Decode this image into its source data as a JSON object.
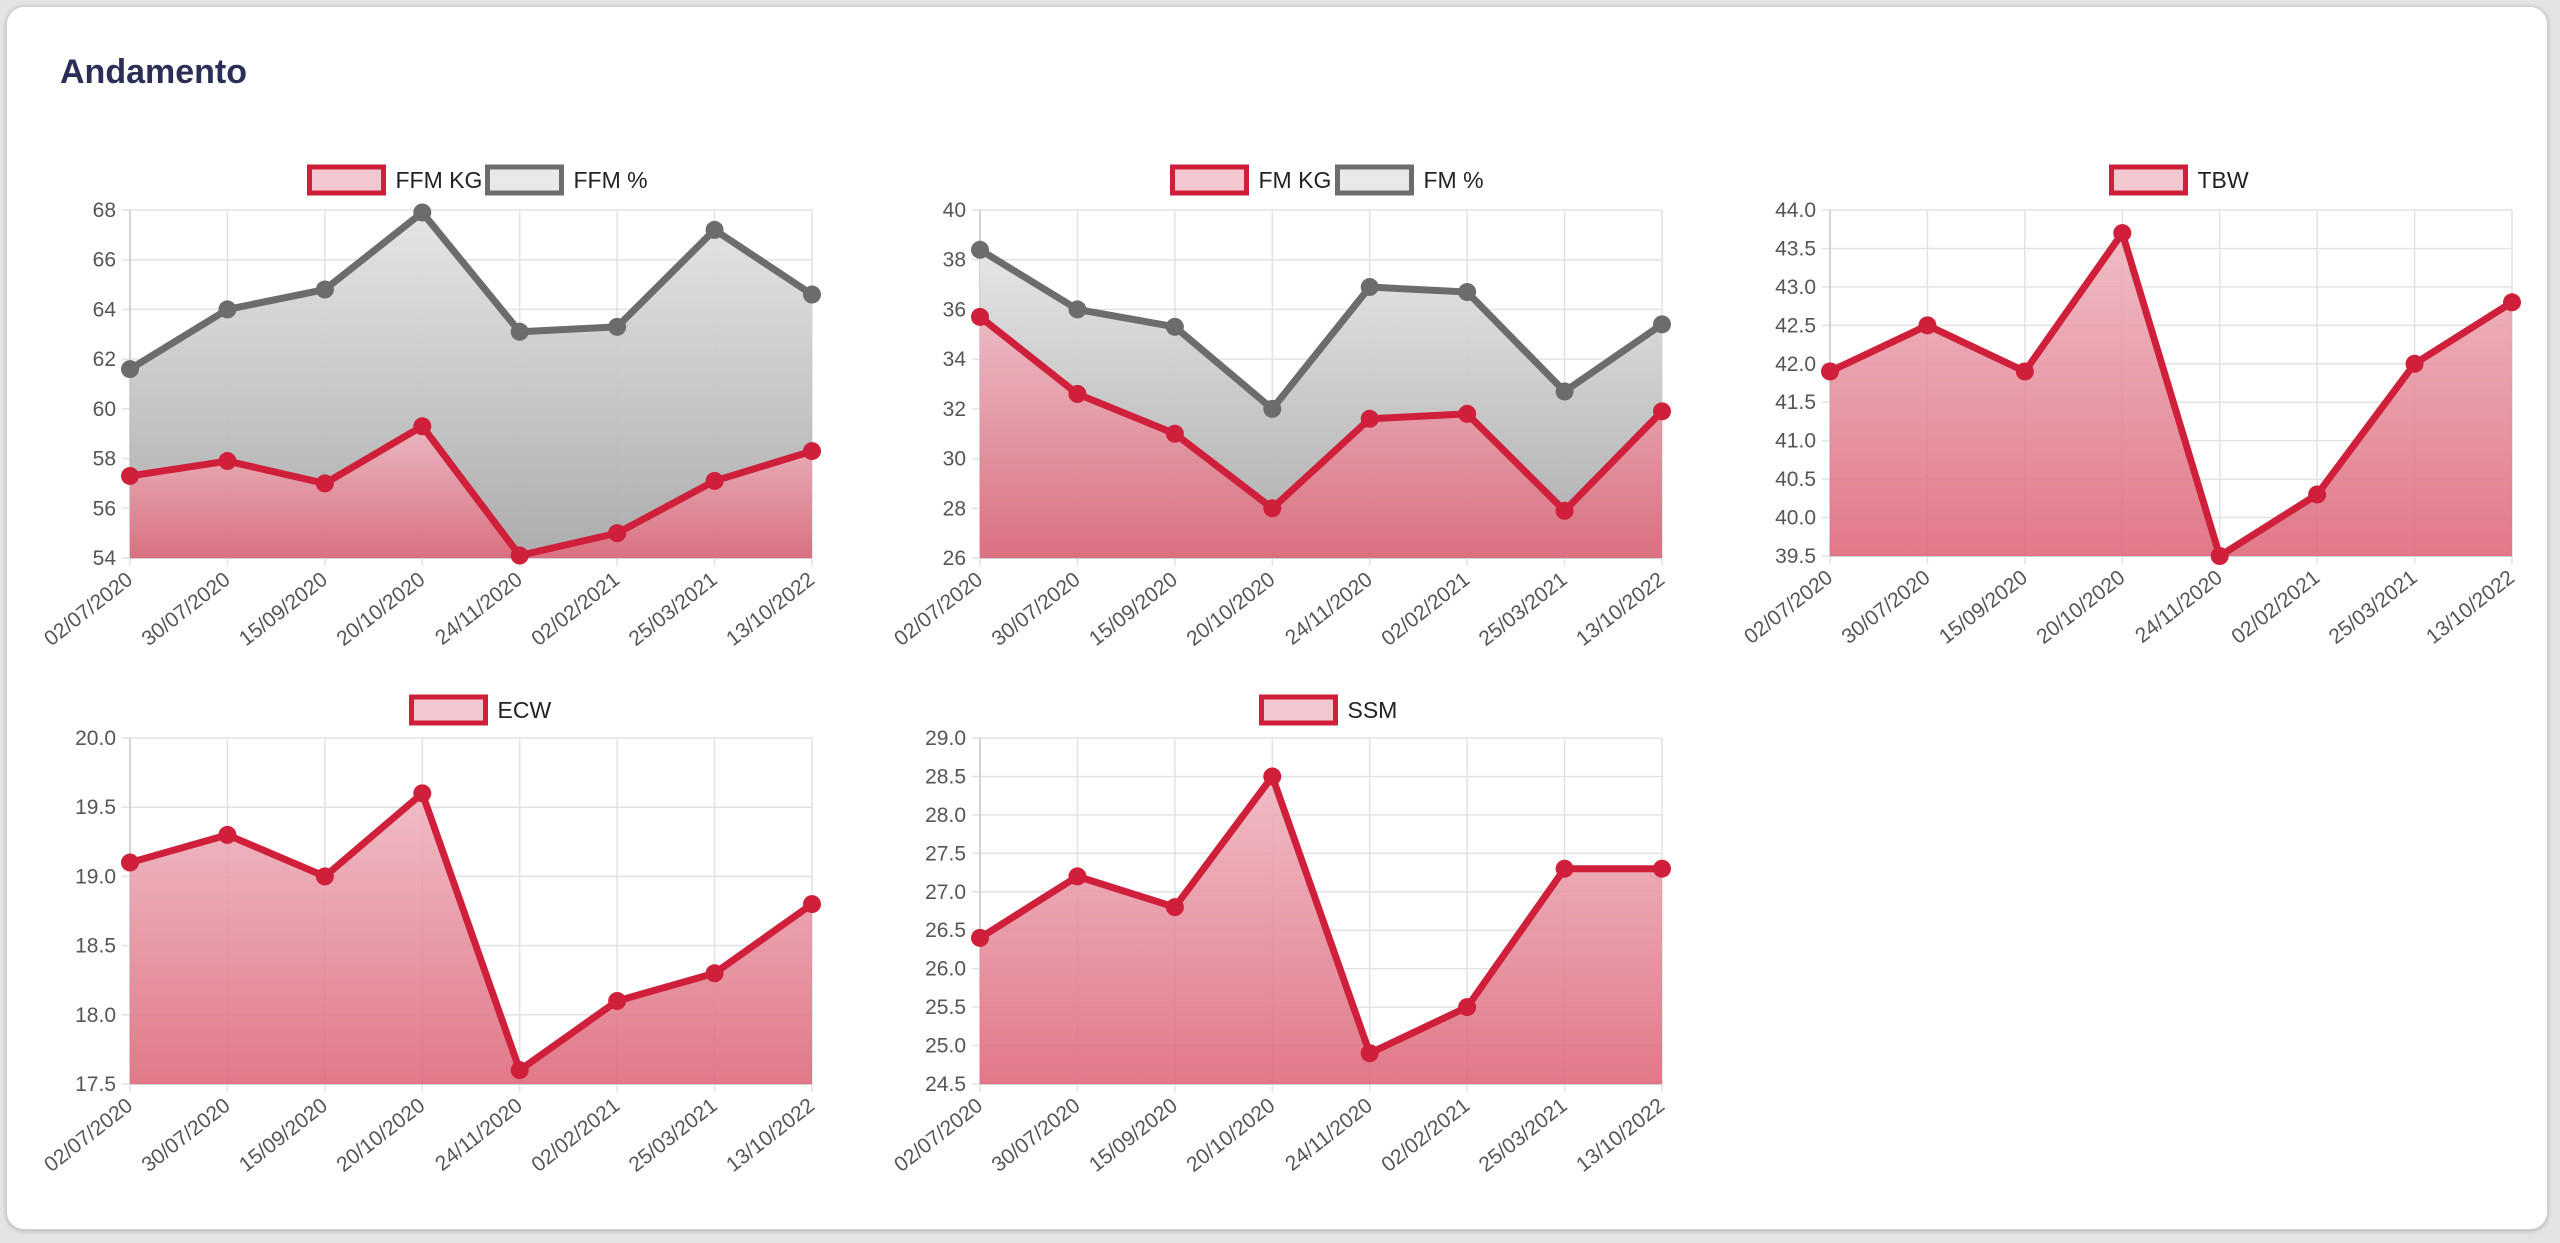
{
  "card": {
    "title": "Andamento"
  },
  "colors": {
    "red": "#cf1f3a",
    "gray": "#6c6c6c"
  },
  "chart_data": [
    {
      "id": "ffm",
      "type": "area",
      "categories": [
        "02/07/2020",
        "30/07/2020",
        "15/09/2020",
        "20/10/2020",
        "24/11/2020",
        "02/02/2021",
        "25/03/2021",
        "13/10/2022"
      ],
      "ylim": [
        54,
        68
      ],
      "yticks": [
        "68",
        "66",
        "64",
        "62",
        "60",
        "58",
        "56",
        "54"
      ],
      "series": [
        {
          "name": "FFM KG",
          "color": "red",
          "values": [
            57.3,
            57.9,
            57.0,
            59.3,
            54.1,
            55.0,
            57.1,
            58.3
          ]
        },
        {
          "name": "FFM %",
          "color": "gray",
          "values": [
            61.6,
            64.0,
            64.8,
            67.9,
            63.1,
            63.3,
            67.2,
            64.6
          ]
        }
      ],
      "grid": true,
      "legend": "top-center"
    },
    {
      "id": "fm",
      "type": "area",
      "categories": [
        "02/07/2020",
        "30/07/2020",
        "15/09/2020",
        "20/10/2020",
        "24/11/2020",
        "02/02/2021",
        "25/03/2021",
        "13/10/2022"
      ],
      "ylim": [
        26,
        40
      ],
      "yticks": [
        "40",
        "38",
        "36",
        "34",
        "32",
        "30",
        "28",
        "26"
      ],
      "series": [
        {
          "name": "FM KG",
          "color": "red",
          "values": [
            35.7,
            32.6,
            31.0,
            28.0,
            31.6,
            31.8,
            27.9,
            31.9
          ]
        },
        {
          "name": "FM %",
          "color": "gray",
          "values": [
            38.4,
            36.0,
            35.3,
            32.0,
            36.9,
            36.7,
            32.7,
            35.4
          ]
        }
      ],
      "grid": true,
      "legend": "top-center"
    },
    {
      "id": "tbw",
      "type": "area",
      "categories": [
        "02/07/2020",
        "30/07/2020",
        "15/09/2020",
        "20/10/2020",
        "24/11/2020",
        "02/02/2021",
        "25/03/2021",
        "13/10/2022"
      ],
      "ylim": [
        39.5,
        44.0
      ],
      "yticks": [
        "44.0",
        "43.5",
        "43.0",
        "42.5",
        "42.0",
        "41.5",
        "41.0",
        "40.5",
        "40.0",
        "39.5"
      ],
      "series": [
        {
          "name": "TBW",
          "color": "red",
          "values": [
            41.9,
            42.5,
            41.9,
            43.7,
            39.5,
            40.3,
            42.0,
            42.8
          ]
        }
      ],
      "grid": true,
      "legend": "top-center"
    },
    {
      "id": "ecw",
      "type": "area",
      "categories": [
        "02/07/2020",
        "30/07/2020",
        "15/09/2020",
        "20/10/2020",
        "24/11/2020",
        "02/02/2021",
        "25/03/2021",
        "13/10/2022"
      ],
      "ylim": [
        17.5,
        20.0
      ],
      "yticks": [
        "20.0",
        "19.5",
        "19.0",
        "18.5",
        "18.0",
        "17.5"
      ],
      "series": [
        {
          "name": "ECW",
          "color": "red",
          "values": [
            19.1,
            19.3,
            19.0,
            19.6,
            17.6,
            18.1,
            18.3,
            18.8
          ]
        }
      ],
      "grid": true,
      "legend": "top-center"
    },
    {
      "id": "ssm",
      "type": "area",
      "categories": [
        "02/07/2020",
        "30/07/2020",
        "15/09/2020",
        "20/10/2020",
        "24/11/2020",
        "02/02/2021",
        "25/03/2021",
        "13/10/2022"
      ],
      "ylim": [
        24.5,
        29.0
      ],
      "yticks": [
        "29.0",
        "28.5",
        "28.0",
        "27.5",
        "27.0",
        "26.5",
        "26.0",
        "25.5",
        "25.0",
        "24.5"
      ],
      "series": [
        {
          "name": "SSM",
          "color": "red",
          "values": [
            26.4,
            27.2,
            26.8,
            28.5,
            24.9,
            25.5,
            27.3,
            27.3
          ]
        }
      ],
      "grid": true,
      "legend": "top-center"
    }
  ]
}
